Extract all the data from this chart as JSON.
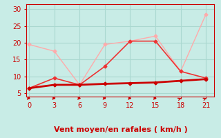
{
  "xlabel": "Vent moyen/en rafales ( km/h )",
  "bg_color": "#c8ece6",
  "grid_color": "#aad8d0",
  "x_ticks": [
    0,
    3,
    6,
    9,
    12,
    15,
    18,
    21
  ],
  "y_ticks": [
    5,
    10,
    15,
    20,
    25,
    30
  ],
  "xlim": [
    -0.3,
    22.0
  ],
  "ylim": [
    4.0,
    31.5
  ],
  "line_dark": {
    "x": [
      0,
      3,
      6,
      9,
      12,
      15,
      18,
      21
    ],
    "y": [
      6.5,
      7.5,
      7.5,
      7.8,
      8.0,
      8.2,
      8.7,
      9.2
    ],
    "color": "#cc0000",
    "lw": 2.0,
    "marker": "D",
    "ms": 2.5
  },
  "line_light": {
    "x": [
      0,
      3,
      6,
      9,
      12,
      15,
      18,
      21
    ],
    "y": [
      19.5,
      17.5,
      7.5,
      19.5,
      20.5,
      22.0,
      11.5,
      28.5
    ],
    "color": "#ffaaaa",
    "lw": 1.0,
    "marker": "D",
    "ms": 2.5
  },
  "line_mid": {
    "x": [
      0,
      3,
      6,
      9,
      12,
      15,
      18,
      21
    ],
    "y": [
      6.5,
      9.5,
      7.5,
      13.0,
      20.5,
      20.5,
      11.5,
      9.5
    ],
    "color": "#ee3333",
    "lw": 1.2,
    "marker": "D",
    "ms": 2.5
  },
  "arrows": {
    "x": [
      0,
      3,
      6,
      9,
      12,
      15,
      18,
      21
    ],
    "angles": [
      0,
      0,
      0,
      0,
      0,
      0,
      45,
      45
    ]
  },
  "tick_color": "#cc0000",
  "axis_label_color": "#cc0000",
  "axis_label_fontsize": 8,
  "tick_fontsize": 7
}
